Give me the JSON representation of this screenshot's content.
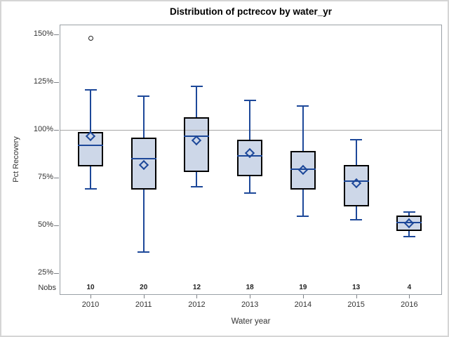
{
  "title": "Distribution of pctrecov by water_yr",
  "colors": {
    "box_fill": "#cdd7e8",
    "box_border": "#000000",
    "line_blue": "#1d4899",
    "reference_line": "#a7a7a7",
    "plot_border": "#9aa0a6",
    "outlier": "#222222"
  },
  "chart_data": {
    "type": "box",
    "title": "Distribution of pctrecov by water_yr",
    "xlabel": "Water year",
    "ylabel": "Pct Recovery",
    "nobs_label": "Nobs",
    "y_ticks": [
      {
        "label": "150%",
        "value": 150
      },
      {
        "label": "125%",
        "value": 125
      },
      {
        "label": "100%",
        "value": 100
      },
      {
        "label": "75%",
        "value": 75
      },
      {
        "label": "50%",
        "value": 50
      },
      {
        "label": "25%",
        "value": 25
      }
    ],
    "ylim": [
      13,
      155
    ],
    "reference_line_value": 100,
    "grid": "reference line at 100% only",
    "legend": "none",
    "categories": [
      "2010",
      "2011",
      "2012",
      "2013",
      "2014",
      "2015",
      "2016"
    ],
    "nobs": [
      10,
      20,
      12,
      18,
      19,
      13,
      4
    ],
    "boxes": [
      {
        "year": "2010",
        "n": 10,
        "whisker_low": 69,
        "q1": 81,
        "median": 92,
        "mean": 96.5,
        "q3": 99,
        "whisker_high": 121,
        "outliers": [
          148
        ]
      },
      {
        "year": "2011",
        "n": 20,
        "whisker_low": 36,
        "q1": 68.5,
        "median": 85,
        "mean": 81.5,
        "q3": 96,
        "whisker_high": 117.5,
        "outliers": []
      },
      {
        "year": "2012",
        "n": 12,
        "whisker_low": 70,
        "q1": 78,
        "median": 96.5,
        "mean": 94.5,
        "q3": 106.5,
        "whisker_high": 123,
        "outliers": []
      },
      {
        "year": "2013",
        "n": 18,
        "whisker_low": 67,
        "q1": 75.5,
        "median": 86.5,
        "mean": 88,
        "q3": 95,
        "whisker_high": 115.5,
        "outliers": []
      },
      {
        "year": "2014",
        "n": 19,
        "whisker_low": 54.5,
        "q1": 68.5,
        "median": 79.5,
        "mean": 79,
        "q3": 89,
        "whisker_high": 112.5,
        "outliers": []
      },
      {
        "year": "2015",
        "n": 13,
        "whisker_low": 53,
        "q1": 60,
        "median": 73,
        "mean": 72,
        "q3": 81.5,
        "whisker_high": 95,
        "outliers": []
      },
      {
        "year": "2016",
        "n": 4,
        "whisker_low": 44,
        "q1": 47,
        "median": 51.5,
        "mean": 51,
        "q3": 55,
        "whisker_high": 57,
        "outliers": []
      }
    ]
  }
}
